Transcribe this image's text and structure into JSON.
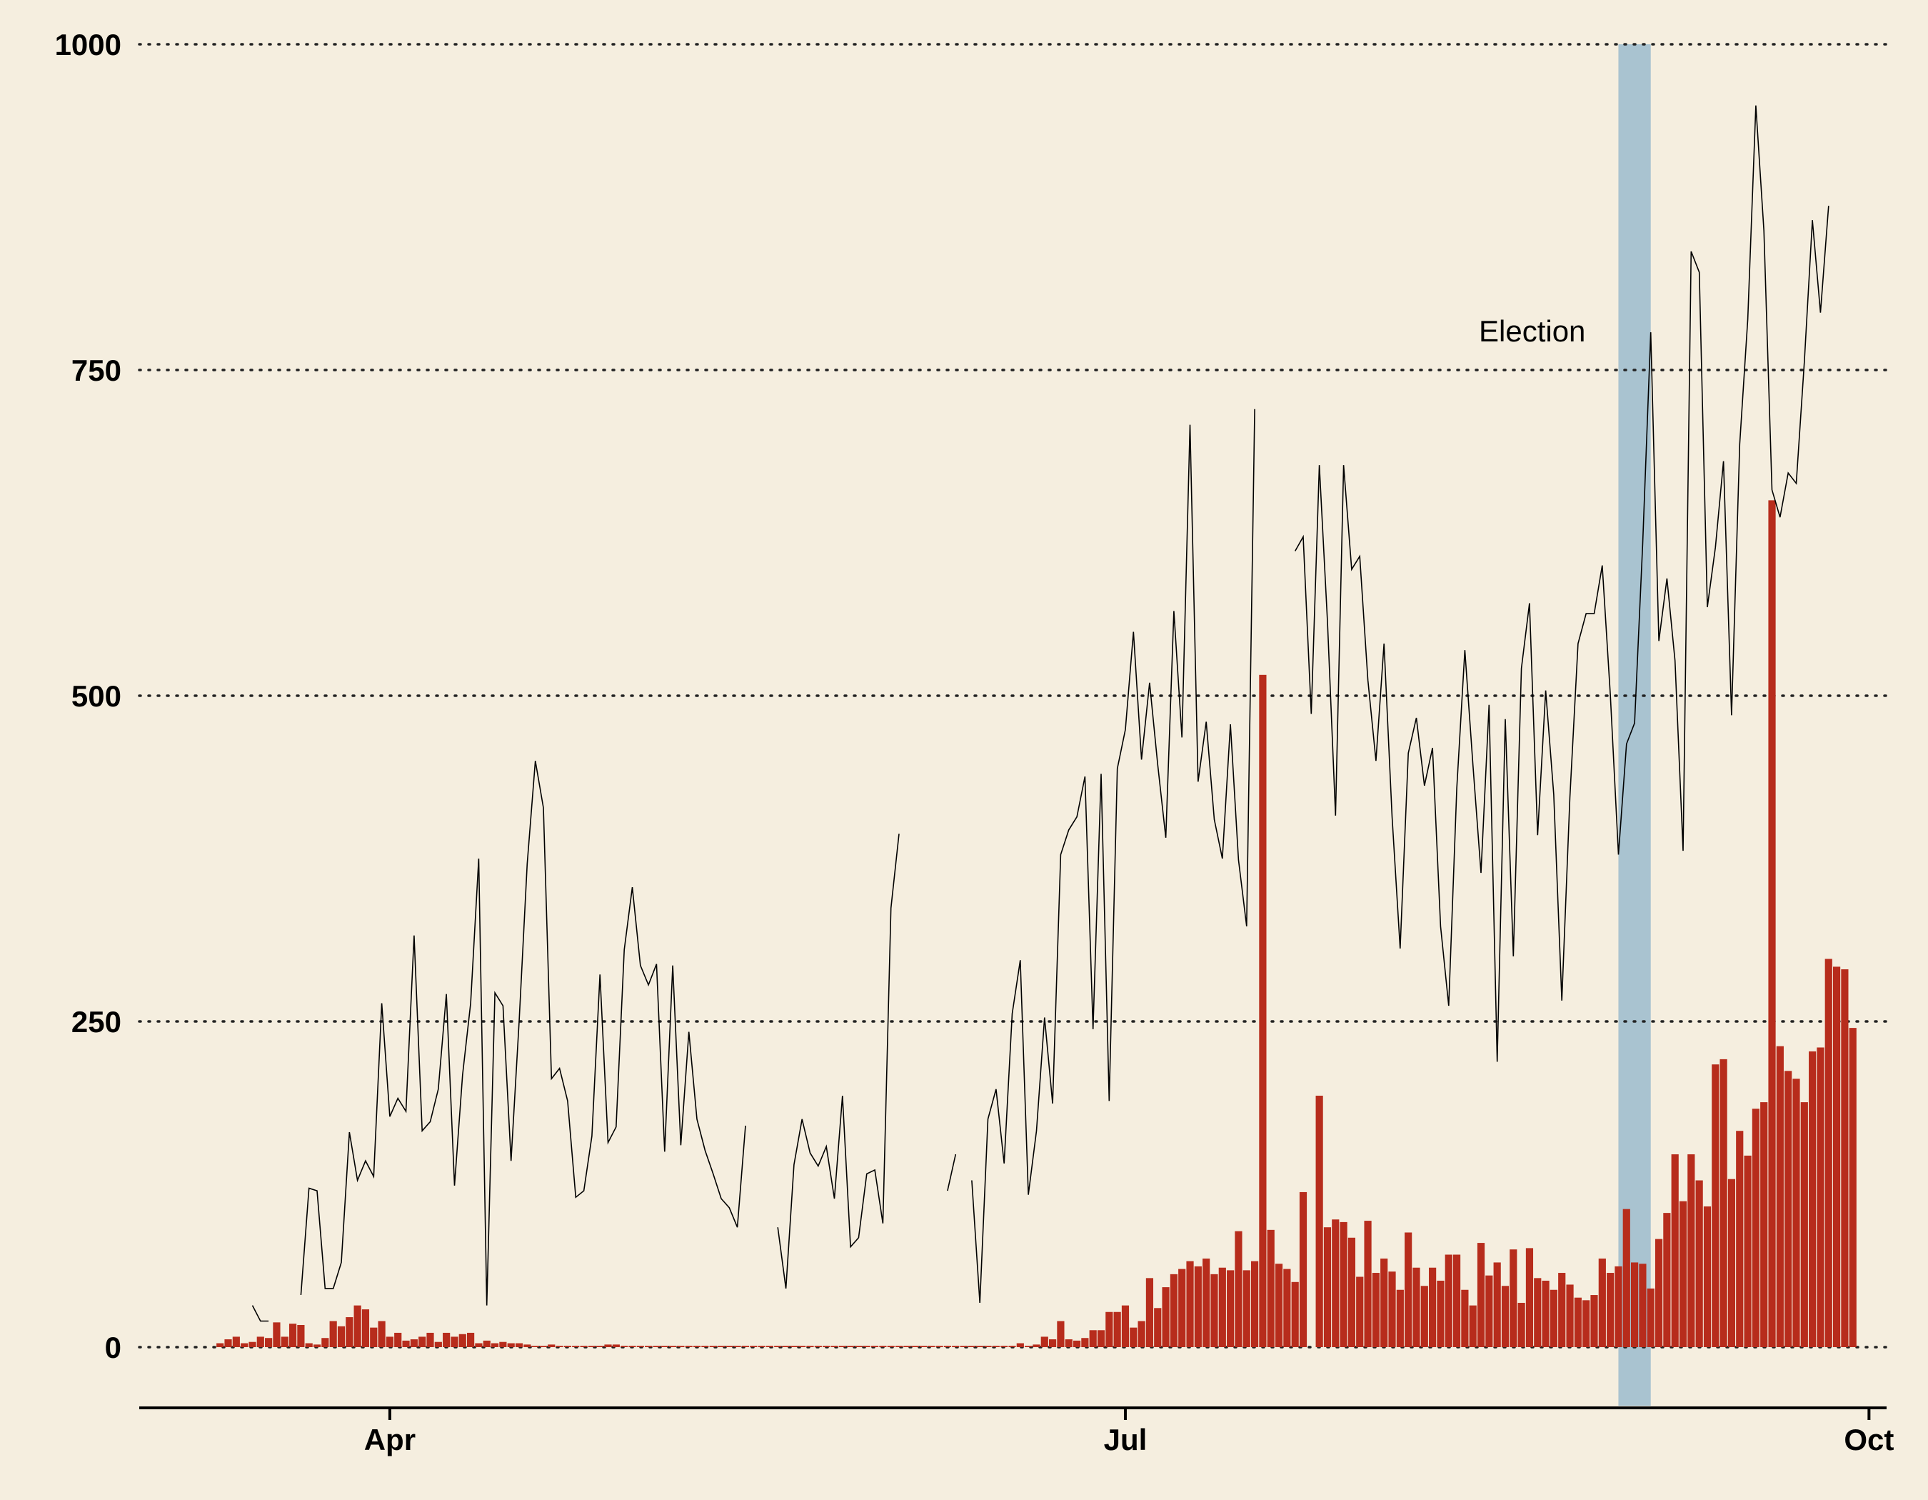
{
  "chart_data": {
    "type": "bar",
    "annotation": "Election",
    "y_axis": {
      "ylim": [
        -45,
        1000
      ],
      "ticks": [
        0,
        250,
        500,
        750,
        1000
      ],
      "gridlines": "dotted"
    },
    "x_axis": {
      "start": "2020-03-01",
      "end": "2020-10-03",
      "ticks": [
        {
          "date": "2020-04-01",
          "label": "Apr"
        },
        {
          "date": "2020-07-01",
          "label": "Jul"
        },
        {
          "date": "2020-10-01",
          "label": "Oct"
        }
      ]
    },
    "highlight": {
      "label": "Election",
      "from": "2020-08-31",
      "to": "2020-09-04"
    },
    "colors": {
      "background": "#f5eedf",
      "bars": "#b72c1c",
      "line": "#000000",
      "highlight": "#a9c3d0"
    },
    "series": [
      {
        "kind": "bar",
        "start": "2020-03-11",
        "values": [
          3,
          6,
          8,
          3,
          4,
          8,
          7,
          19,
          8,
          18,
          17,
          3,
          2,
          7,
          20,
          16,
          23,
          32,
          29,
          15,
          20,
          8,
          11,
          5,
          6,
          8,
          11,
          4,
          11,
          8,
          10,
          11,
          3,
          5,
          3,
          4,
          3,
          3,
          2,
          1,
          1,
          2,
          1,
          1,
          1,
          1,
          1,
          1,
          2,
          2,
          1,
          1,
          1,
          1,
          1,
          1,
          1,
          1,
          1,
          1,
          1,
          1,
          1,
          1,
          1,
          1,
          1,
          1,
          1,
          1,
          1,
          1,
          1,
          1,
          1,
          1,
          1,
          1,
          1,
          1,
          1,
          1,
          1,
          1,
          1,
          1,
          1,
          1,
          1,
          1,
          1,
          1,
          1,
          1,
          1,
          1,
          1,
          1,
          1,
          3,
          1,
          2,
          8,
          6,
          20,
          6,
          5,
          7,
          13,
          13,
          27,
          27,
          32,
          15,
          20,
          53,
          30,
          46,
          56,
          60,
          66,
          62,
          68,
          56,
          61,
          59,
          89,
          59,
          66,
          516,
          90,
          64,
          60,
          50,
          119,
          0,
          193,
          92,
          98,
          96,
          84,
          54,
          97,
          57,
          68,
          58,
          44,
          88,
          61,
          47,
          61,
          51,
          71,
          71,
          44,
          32,
          80,
          55,
          65,
          47,
          75,
          34,
          76,
          53,
          51,
          44,
          57,
          48,
          38,
          36,
          40,
          68,
          57,
          62,
          106,
          65,
          64,
          45,
          83,
          103,
          148,
          112,
          148,
          128,
          108,
          217,
          221,
          129,
          166,
          147,
          183,
          188,
          650,
          231,
          212,
          206,
          188,
          227,
          230,
          298,
          292,
          290,
          245
        ]
      },
      {
        "kind": "line",
        "start": "2020-03-15",
        "values": [
          32,
          20,
          20,
          null,
          null,
          null,
          40,
          122,
          120,
          45,
          45,
          65,
          165,
          128,
          143,
          131,
          264,
          177,
          191,
          181,
          316,
          166,
          173,
          198,
          271,
          124,
          209,
          264,
          375,
          32,
          272,
          262,
          143,
          250,
          371,
          450,
          414,
          206,
          214,
          189,
          115,
          120,
          162,
          286,
          157,
          169,
          305,
          353,
          293,
          278,
          294,
          150,
          293,
          155,
          242,
          175,
          151,
          133,
          114,
          107,
          92,
          170,
          null,
          null,
          null,
          92,
          45,
          140,
          175,
          149,
          139,
          154,
          114,
          193,
          77,
          84,
          133,
          136,
          95,
          337,
          394,
          null,
          null,
          null,
          null,
          null,
          120,
          148,
          null,
          128,
          34,
          175,
          198,
          141,
          256,
          297,
          117,
          166,
          253,
          187,
          378,
          397,
          407,
          438,
          244,
          440,
          189,
          444,
          474,
          549,
          451,
          510,
          447,
          391,
          565,
          468,
          708,
          434,
          480,
          405,
          375,
          478,
          374,
          323,
          720,
          null,
          null,
          null,
          null,
          611,
          622,
          486,
          677,
          557,
          408,
          677,
          597,
          607,
          512,
          450,
          540,
          407,
          306,
          456,
          483,
          431,
          460,
          323,
          262,
          429,
          535,
          447,
          364,
          493,
          219,
          482,
          300,
          521,
          571,
          393,
          504,
          424,
          266,
          422,
          540,
          563,
          563,
          600,
          501,
          378,
          463,
          479,
          616,
          779,
          542,
          590,
          527,
          381,
          841,
          825,
          568,
          614,
          680,
          485,
          693,
          789,
          953,
          857,
          658,
          637,
          671,
          663,
          756,
          865,
          794,
          876
        ]
      }
    ]
  }
}
